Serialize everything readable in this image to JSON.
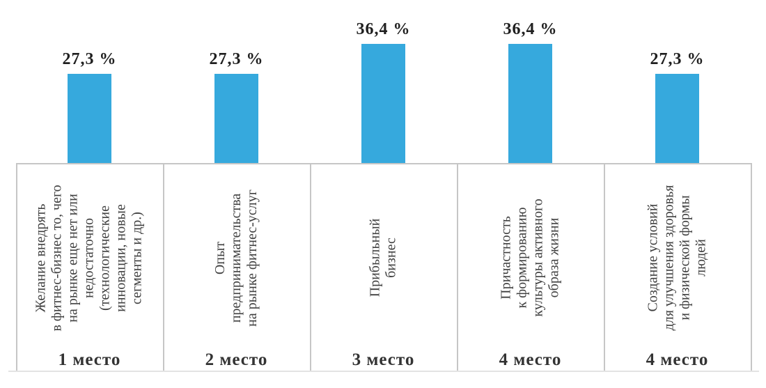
{
  "chart_data": {
    "type": "bar",
    "title": "",
    "xlabel": "",
    "ylabel": "",
    "ylim": [
      0,
      40
    ],
    "grid": false,
    "legend": false,
    "bar_color": "#36A9DD",
    "axis_line_color": "#c6c6c6",
    "bottom_line_color": "#e3e3e3",
    "categories": [
      "Желание внедрять в фитнес-бизнес то, чего на рынке еще нет или недостаточно (технологические инновации, новые сегменты и др.)",
      "Опыт предпринимательства на рынке фитнес-услуг",
      "Прибыльный бизнес",
      "Причастность к формированию культуры активного образа жизни",
      "Создание условий для улучшения здоровья и физической формы людей"
    ],
    "category_lines": [
      [
        "Желание внедрять",
        "в фитнес-бизнес то, чего",
        "на рынке еще нет или",
        "недостаточно",
        "(технологические",
        "инновации, новые",
        "сегменты и др.)"
      ],
      [
        "Опыт",
        "предпринимательства",
        "на рынке фитнес-услуг"
      ],
      [
        "Прибыльный",
        "бизнес"
      ],
      [
        "Причастность",
        "к формированию",
        "культуры активного",
        "образа жизни"
      ],
      [
        "Создание условий",
        "для улучшения здоровья",
        "и физической формы",
        "людей"
      ]
    ],
    "values": [
      27.3,
      27.3,
      36.4,
      36.4,
      27.3
    ],
    "value_labels": [
      "27,3 %",
      "27,3 %",
      "36,4 %",
      "36,4 %",
      "27,3 %"
    ],
    "rank_labels": [
      "1 место",
      "2 место",
      "3 место",
      "4 место",
      "4 место"
    ]
  }
}
